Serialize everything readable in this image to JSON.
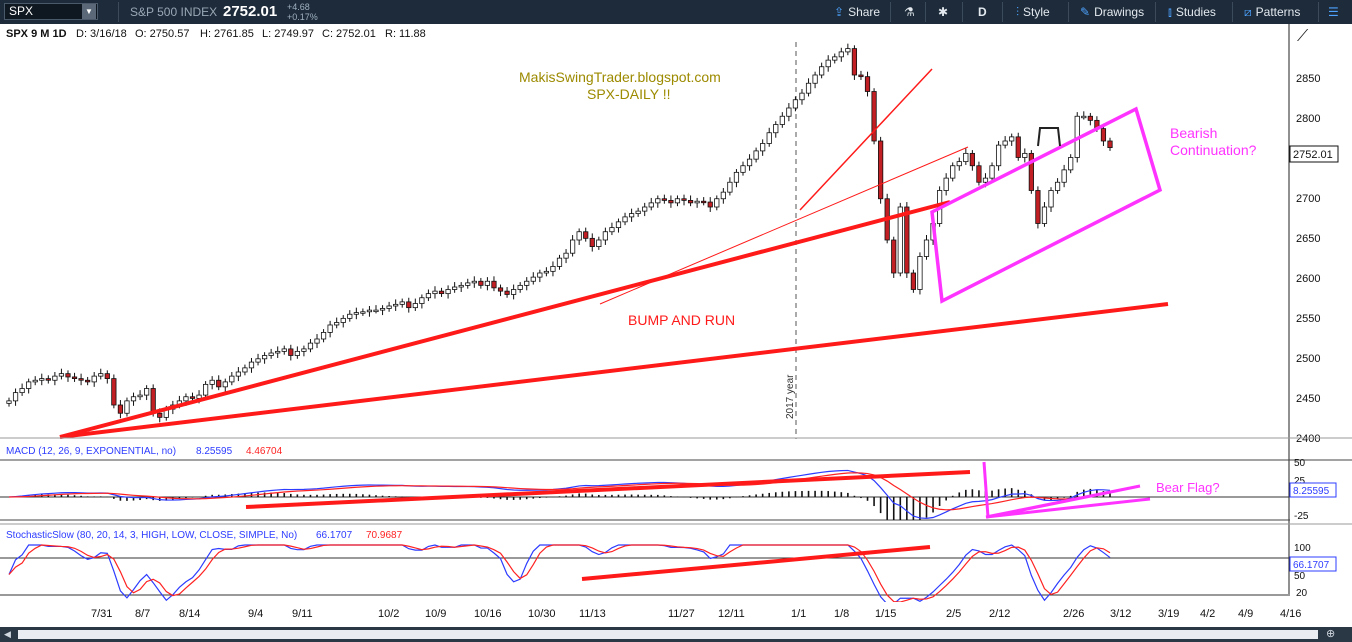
{
  "toolbar": {
    "symbol": "SPX",
    "index_name": "S&P 500 INDEX",
    "last": "2752.01",
    "change": "+4.68",
    "change_pct": "+0.17%",
    "share": "Share",
    "flask_icon": "flask-icon",
    "gear_icon": "gear-icon",
    "aggregation": "D",
    "style": "Style",
    "drawings": "Drawings",
    "studies": "Studies",
    "patterns": "Patterns"
  },
  "chart_header": {
    "title": "SPX 9 M 1D",
    "date": "D: 3/16/18",
    "open": "O: 2750.57",
    "high": "H: 2761.85",
    "low": "L: 2749.97",
    "close": "C: 2752.01",
    "range": "R: 11.88"
  },
  "annotations": {
    "site": "MakisSwingTrader.blogspot.com",
    "subtitle": "SPX-DAILY  !!",
    "bump_run": "BUMP AND RUN",
    "bearish": "Bearish",
    "continuation": "Continuation?",
    "bear_flag": "Bear Flag?",
    "year_marker": "2017 year"
  },
  "price_axis": {
    "labels": [
      "2850",
      "2800",
      "2750",
      "2700",
      "2650",
      "2600",
      "2550",
      "2500",
      "2450",
      "2400"
    ],
    "current_label": "2752.01"
  },
  "macd": {
    "label": "MACD (12, 26, 9, EXPONENTIAL, no)",
    "value1": "8.25595",
    "value2": "4.46704",
    "axis": [
      "50",
      "25",
      "0",
      "-25"
    ],
    "current_label": "8.25595"
  },
  "stoch": {
    "label": "StochasticSlow (80, 20, 14, 3, HIGH, LOW, CLOSE, SIMPLE, No)",
    "value1": "66.1707",
    "value2": "70.9687",
    "axis": [
      "100",
      "80",
      "50",
      "20"
    ],
    "current_label": "66.1707"
  },
  "time_axis": [
    "7/31",
    "8/7",
    "8/14",
    "9/4",
    "9/11",
    "10/2",
    "10/9",
    "10/16",
    "10/30",
    "11/13",
    "11/27",
    "12/11",
    "1/1",
    "1/8",
    "1/15",
    "2/5",
    "2/12",
    "2/26",
    "3/12",
    "3/19",
    "4/2",
    "4/9",
    "4/16"
  ],
  "chart_data": {
    "type": "candlestick",
    "price_range": [
      2400,
      2880
    ],
    "closes_approx": [
      2445,
      2455,
      2460,
      2468,
      2470,
      2472,
      2470,
      2475,
      2478,
      2474,
      2472,
      2470,
      2468,
      2475,
      2478,
      2472,
      2440,
      2430,
      2445,
      2450,
      2452,
      2460,
      2430,
      2425,
      2435,
      2440,
      2445,
      2450,
      2448,
      2452,
      2465,
      2470,
      2462,
      2468,
      2475,
      2480,
      2485,
      2492,
      2496,
      2500,
      2503,
      2505,
      2508,
      2500,
      2505,
      2508,
      2515,
      2520,
      2528,
      2537,
      2540,
      2545,
      2550,
      2552,
      2553,
      2555,
      2555,
      2557,
      2560,
      2562,
      2565,
      2558,
      2563,
      2570,
      2575,
      2578,
      2575,
      2580,
      2583,
      2585,
      2588,
      2590,
      2585,
      2590,
      2582,
      2578,
      2574,
      2580,
      2585,
      2590,
      2595,
      2600,
      2602,
      2608,
      2618,
      2624,
      2640,
      2650,
      2642,
      2632,
      2640,
      2650,
      2655,
      2662,
      2668,
      2672,
      2675,
      2680,
      2685,
      2690,
      2688,
      2685,
      2690,
      2688,
      2685,
      2687,
      2686,
      2680,
      2690,
      2698,
      2710,
      2722,
      2730,
      2738,
      2748,
      2757,
      2770,
      2780,
      2790,
      2800,
      2810,
      2818,
      2830,
      2840,
      2850,
      2858,
      2862,
      2868,
      2872,
      2840,
      2838,
      2820,
      2760,
      2690,
      2640,
      2600,
      2680,
      2600,
      2580,
      2620,
      2640,
      2660,
      2700,
      2715,
      2730,
      2735,
      2745,
      2730,
      2710,
      2715,
      2730,
      2755,
      2760,
      2765,
      2740,
      2745,
      2700,
      2660,
      2680,
      2700,
      2710,
      2725,
      2740,
      2790,
      2790,
      2785,
      2775,
      2760,
      2752
    ],
    "annotations": [
      "BUMP AND RUN",
      "Bearish",
      "Continuation?",
      "Bear Flag?"
    ],
    "colors": {
      "up": "#ffffff",
      "down": "#c21f24",
      "trend": "#ff1a1a",
      "channel": "#ff33ff",
      "macd": "#2d3cff",
      "signal": "#ff2222",
      "annotation_gold": "#9c8a00"
    }
  }
}
